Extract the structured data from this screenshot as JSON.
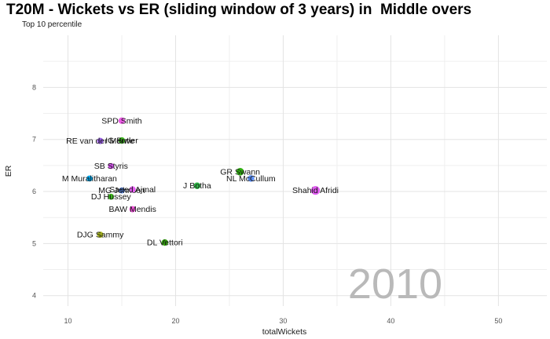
{
  "chart_data": {
    "type": "scatter",
    "title": "T20M - Wickets vs ER (sliding window of 3 years) in  Middle overs",
    "subtitle": "Top 10 percentile",
    "xlabel": "totalWickets",
    "ylabel": "ER",
    "watermark": "2010",
    "xlim": [
      7.7,
      54.5
    ],
    "ylim": [
      3.8,
      9.0
    ],
    "x_ticks": [
      10,
      20,
      30,
      40,
      50
    ],
    "x_minor_ticks": [
      15,
      25,
      35,
      45
    ],
    "y_ticks": [
      4,
      5,
      6,
      7,
      8
    ],
    "y_minor_ticks": [
      4.5,
      5.5,
      6.5,
      7.5,
      8.5
    ],
    "grid": true,
    "legend_position": "none",
    "points": [
      {
        "label": "SPD Smith",
        "totalWickets": 15,
        "er": 7.36,
        "color": "#ee5ce8",
        "r": 4.2
      },
      {
        "label": "IG Butler",
        "totalWickets": 15,
        "er": 6.98,
        "color": "#3cb51c",
        "r": 4.2
      },
      {
        "label": "RE van der Merwe",
        "totalWickets": 13,
        "er": 6.97,
        "color": "#9a5fe8",
        "r": 4.0
      },
      {
        "label": "SB Styris",
        "totalWickets": 14,
        "er": 6.49,
        "color": "#cf52e8",
        "r": 3.8
      },
      {
        "label": "M Muralitharan",
        "totalWickets": 12,
        "er": 6.25,
        "color": "#00aaf0",
        "r": 3.8
      },
      {
        "label": "GR Swann",
        "totalWickets": 26,
        "er": 6.38,
        "color": "#2fae10",
        "r": 4.8
      },
      {
        "label": "NL McCullum",
        "totalWickets": 27,
        "er": 6.25,
        "color": "#5c8ff5",
        "r": 4.2
      },
      {
        "label": "J Botha",
        "totalWickets": 22,
        "er": 6.11,
        "color": "#2eb847",
        "r": 4.2
      },
      {
        "label": "MG Johnson",
        "totalWickets": 15,
        "er": 6.02,
        "color": "#5c8ff5",
        "r": 3.8
      },
      {
        "label": "Saeed Ajmal",
        "totalWickets": 16,
        "er": 6.04,
        "color": "#e35cf0",
        "r": 4.0
      },
      {
        "label": "DJ Hussey",
        "totalWickets": 14,
        "er": 5.9,
        "color": "#3cb51c",
        "r": 3.8
      },
      {
        "label": "BAW Mendis",
        "totalWickets": 16,
        "er": 5.66,
        "color": "#ee52d8",
        "r": 4.0
      },
      {
        "label": "Shahid Afridi",
        "totalWickets": 33,
        "er": 6.02,
        "color": "#e05cf0",
        "r": 5.6
      },
      {
        "label": "DJG Sammy",
        "totalWickets": 13,
        "er": 5.17,
        "color": "#a6b41f",
        "r": 4.0
      },
      {
        "label": "DL Vettori",
        "totalWickets": 19,
        "er": 5.02,
        "color": "#35a112",
        "r": 4.2
      }
    ]
  }
}
